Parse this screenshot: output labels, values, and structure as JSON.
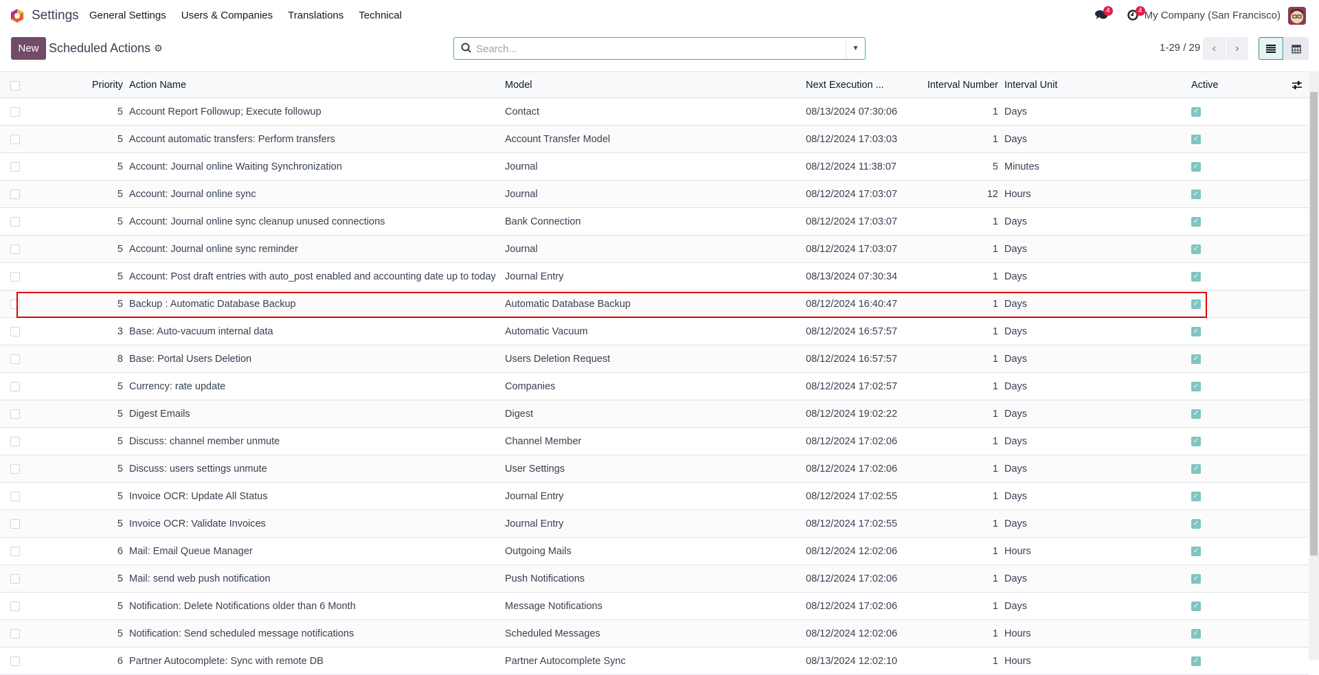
{
  "topnav": {
    "app_name": "Settings",
    "menu": [
      "General Settings",
      "Users & Companies",
      "Translations",
      "Technical"
    ],
    "messages_badge": "4",
    "activities_badge": "4",
    "company": "My Company (San Francisco)"
  },
  "control": {
    "new_label": "New",
    "title": "Scheduled Actions",
    "search_placeholder": "Search...",
    "pager": "1-29 / 29"
  },
  "colors": {
    "brand": "#714b67",
    "accent": "#2bb4b0",
    "highlight": "#e00000",
    "checkbox": "#7fc5c0"
  },
  "table": {
    "headers": {
      "priority": "Priority",
      "name": "Action Name",
      "model": "Model",
      "next": "Next Execution ...",
      "interval_number": "Interval Number",
      "interval_unit": "Interval Unit",
      "active": "Active"
    },
    "highlighted_row": 7,
    "rows": [
      {
        "priority": "5",
        "name": "Account Report Followup; Execute followup",
        "model": "Contact",
        "next": "08/13/2024 07:30:06",
        "num": "1",
        "unit": "Days",
        "active": true
      },
      {
        "priority": "5",
        "name": "Account automatic transfers: Perform transfers",
        "model": "Account Transfer Model",
        "next": "08/12/2024 17:03:03",
        "num": "1",
        "unit": "Days",
        "active": true
      },
      {
        "priority": "5",
        "name": "Account: Journal online Waiting Synchronization",
        "model": "Journal",
        "next": "08/12/2024 11:38:07",
        "num": "5",
        "unit": "Minutes",
        "active": true
      },
      {
        "priority": "5",
        "name": "Account: Journal online sync",
        "model": "Journal",
        "next": "08/12/2024 17:03:07",
        "num": "12",
        "unit": "Hours",
        "active": true
      },
      {
        "priority": "5",
        "name": "Account: Journal online sync cleanup unused connections",
        "model": "Bank Connection",
        "next": "08/12/2024 17:03:07",
        "num": "1",
        "unit": "Days",
        "active": true
      },
      {
        "priority": "5",
        "name": "Account: Journal online sync reminder",
        "model": "Journal",
        "next": "08/12/2024 17:03:07",
        "num": "1",
        "unit": "Days",
        "active": true
      },
      {
        "priority": "5",
        "name": "Account: Post draft entries with auto_post enabled and accounting date up to today",
        "model": "Journal Entry",
        "next": "08/13/2024 07:30:34",
        "num": "1",
        "unit": "Days",
        "active": true
      },
      {
        "priority": "5",
        "name": "Backup : Automatic Database Backup",
        "model": "Automatic Database Backup",
        "next": "08/12/2024 16:40:47",
        "num": "1",
        "unit": "Days",
        "active": true
      },
      {
        "priority": "3",
        "name": "Base: Auto-vacuum internal data",
        "model": "Automatic Vacuum",
        "next": "08/12/2024 16:57:57",
        "num": "1",
        "unit": "Days",
        "active": true
      },
      {
        "priority": "8",
        "name": "Base: Portal Users Deletion",
        "model": "Users Deletion Request",
        "next": "08/12/2024 16:57:57",
        "num": "1",
        "unit": "Days",
        "active": true
      },
      {
        "priority": "5",
        "name": "Currency: rate update",
        "model": "Companies",
        "next": "08/12/2024 17:02:57",
        "num": "1",
        "unit": "Days",
        "active": true
      },
      {
        "priority": "5",
        "name": "Digest Emails",
        "model": "Digest",
        "next": "08/12/2024 19:02:22",
        "num": "1",
        "unit": "Days",
        "active": true
      },
      {
        "priority": "5",
        "name": "Discuss: channel member unmute",
        "model": "Channel Member",
        "next": "08/12/2024 17:02:06",
        "num": "1",
        "unit": "Days",
        "active": true
      },
      {
        "priority": "5",
        "name": "Discuss: users settings unmute",
        "model": "User Settings",
        "next": "08/12/2024 17:02:06",
        "num": "1",
        "unit": "Days",
        "active": true
      },
      {
        "priority": "5",
        "name": "Invoice OCR: Update All Status",
        "model": "Journal Entry",
        "next": "08/12/2024 17:02:55",
        "num": "1",
        "unit": "Days",
        "active": true
      },
      {
        "priority": "5",
        "name": "Invoice OCR: Validate Invoices",
        "model": "Journal Entry",
        "next": "08/12/2024 17:02:55",
        "num": "1",
        "unit": "Days",
        "active": true
      },
      {
        "priority": "6",
        "name": "Mail: Email Queue Manager",
        "model": "Outgoing Mails",
        "next": "08/12/2024 12:02:06",
        "num": "1",
        "unit": "Hours",
        "active": true
      },
      {
        "priority": "5",
        "name": "Mail: send web push notification",
        "model": "Push Notifications",
        "next": "08/12/2024 17:02:06",
        "num": "1",
        "unit": "Days",
        "active": true
      },
      {
        "priority": "5",
        "name": "Notification: Delete Notifications older than 6 Month",
        "model": "Message Notifications",
        "next": "08/12/2024 17:02:06",
        "num": "1",
        "unit": "Days",
        "active": true
      },
      {
        "priority": "5",
        "name": "Notification: Send scheduled message notifications",
        "model": "Scheduled Messages",
        "next": "08/12/2024 12:02:06",
        "num": "1",
        "unit": "Hours",
        "active": true
      },
      {
        "priority": "6",
        "name": "Partner Autocomplete: Sync with remote DB",
        "model": "Partner Autocomplete Sync",
        "next": "08/13/2024 12:02:10",
        "num": "1",
        "unit": "Hours",
        "active": true
      }
    ]
  }
}
